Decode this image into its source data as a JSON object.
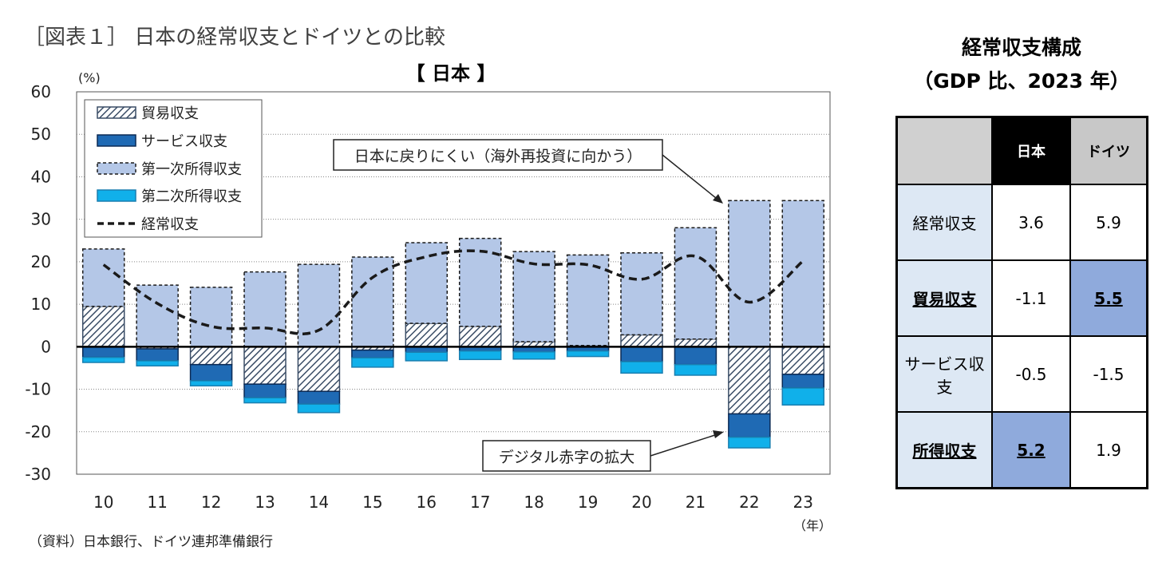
{
  "figure_title": "［図表１］ 日本の経常収支とドイツとの比較",
  "footnote": "（資料）日本銀行、ドイツ連邦準備銀行",
  "colors": {
    "trade_hatch": "#3a4d66",
    "services": "#1f6ab4",
    "primary_income": "#b4c7e7",
    "secondary_income": "#10b0ea",
    "current_account_line": "#1a1a1a"
  },
  "chart_data": {
    "type": "bar",
    "title": "【 日本 】",
    "ylabel": "(%)",
    "xlabel": "（年）",
    "ylim": [
      -30,
      60
    ],
    "yticks": [
      60,
      50,
      40,
      30,
      20,
      10,
      0,
      -10,
      -20,
      -30
    ],
    "categories": [
      "10",
      "11",
      "12",
      "13",
      "14",
      "15",
      "16",
      "17",
      "18",
      "19",
      "20",
      "21",
      "22",
      "23"
    ],
    "series": [
      {
        "name": "貿易収支",
        "values": [
          9.5,
          -0.5,
          -4.2,
          -8.8,
          -10.5,
          -0.8,
          5.5,
          4.8,
          1.2,
          0.3,
          2.8,
          1.8,
          -15.8,
          -6.5
        ]
      },
      {
        "name": "サービス収支",
        "values": [
          -2.5,
          -2.8,
          -3.8,
          -3.2,
          -3.0,
          -1.8,
          -1.3,
          -1.0,
          -1.2,
          -1.0,
          -3.5,
          -4.2,
          -5.5,
          -3.2
        ]
      },
      {
        "name": "第一次所得収支",
        "values": [
          13.5,
          14.5,
          14.0,
          17.6,
          19.4,
          21.1,
          19.0,
          20.7,
          21.2,
          21.3,
          19.3,
          26.2,
          34.4,
          34.4
        ]
      },
      {
        "name": "第二次所得収支",
        "values": [
          -1.2,
          -1.2,
          -1.2,
          -1.2,
          -2.0,
          -2.2,
          -2.0,
          -2.0,
          -1.7,
          -1.3,
          -2.7,
          -2.5,
          -2.5,
          -4.0
        ]
      },
      {
        "name": "経常収支",
        "type": "line",
        "values": [
          19.3,
          10.2,
          4.8,
          4.4,
          3.9,
          16.3,
          21.2,
          22.5,
          19.5,
          19.3,
          15.9,
          21.3,
          10.5,
          20.2
        ]
      }
    ],
    "legend": "top-left",
    "grid": true,
    "annotations": [
      {
        "text": "日本に戻りにくい（海外再投資に向かう）",
        "target": "22"
      },
      {
        "text": "デジタル赤字の拡大",
        "target": "22"
      }
    ]
  },
  "table": {
    "title_line1": "経常収支構成",
    "title_line2": "（GDP 比、2023 年）",
    "headers": [
      "",
      "日本",
      "ドイツ"
    ],
    "rows": [
      {
        "label": "経常収支",
        "japan": "3.6",
        "germany": "5.9"
      },
      {
        "label": "貿易収支",
        "japan": "-1.1",
        "germany": "5.5"
      },
      {
        "label": "サービス収支",
        "japan": "-0.5",
        "germany": "-1.5"
      },
      {
        "label": "所得収支",
        "japan": "5.2",
        "germany": "1.9"
      }
    ]
  }
}
